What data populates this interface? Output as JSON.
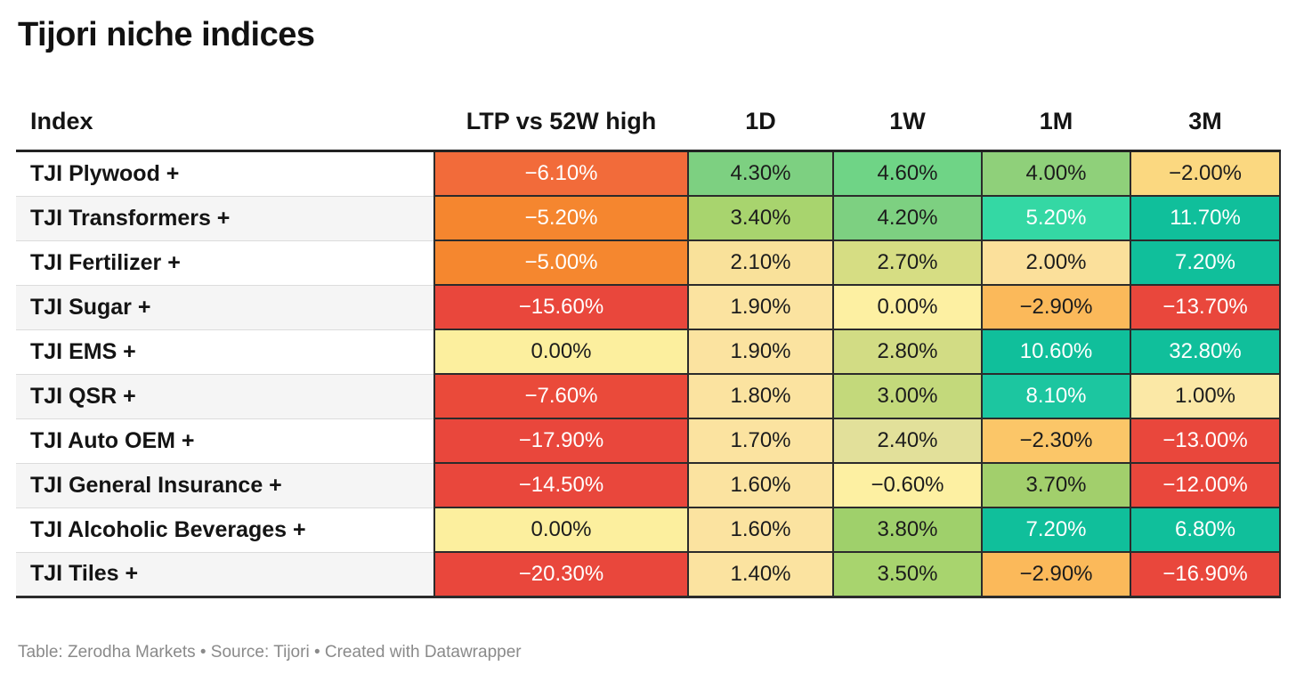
{
  "title": "Tijori niche indices",
  "footer": "Table: Zerodha Markets • Source: Tijori • Created with Datawrapper",
  "chart_data": {
    "type": "table",
    "title": "Tijori niche indices",
    "columns": [
      "Index",
      "LTP vs 52W high",
      "1D",
      "1W",
      "1M",
      "3M"
    ],
    "rows": [
      {
        "name": "TJI Plywood +",
        "values": [
          "−6.10%",
          "4.30%",
          "4.60%",
          "4.00%",
          "−2.00%"
        ],
        "colors": [
          "#f26b3a",
          "#7dd081",
          "#6fd486",
          "#8fd07a",
          "#fbd880"
        ],
        "text": [
          "light",
          "dark",
          "dark",
          "dark",
          "dark"
        ]
      },
      {
        "name": "TJI Transformers +",
        "values": [
          "−5.20%",
          "3.40%",
          "4.20%",
          "5.20%",
          "11.70%"
        ],
        "colors": [
          "#f5862f",
          "#a8d46e",
          "#7dd081",
          "#34d8a4",
          "#10bf9b"
        ],
        "text": [
          "light",
          "dark",
          "dark",
          "light",
          "light"
        ]
      },
      {
        "name": "TJI Fertilizer +",
        "values": [
          "−5.00%",
          "2.10%",
          "2.70%",
          "2.00%",
          "7.20%"
        ],
        "colors": [
          "#f5872f",
          "#f9e19a",
          "#d6dd83",
          "#fbe09b",
          "#10bf9b"
        ],
        "text": [
          "light",
          "dark",
          "dark",
          "dark",
          "light"
        ]
      },
      {
        "name": "TJI Sugar +",
        "values": [
          "−15.60%",
          "1.90%",
          "0.00%",
          "−2.90%",
          "−13.70%"
        ],
        "colors": [
          "#e9473c",
          "#fbe3a0",
          "#fdf0a2",
          "#fbb95a",
          "#e9473c"
        ],
        "text": [
          "light",
          "dark",
          "dark",
          "dark",
          "light"
        ]
      },
      {
        "name": "TJI EMS +",
        "values": [
          "0.00%",
          "1.90%",
          "2.80%",
          "10.60%",
          "32.80%"
        ],
        "colors": [
          "#fcef9e",
          "#fbe3a0",
          "#d2dc84",
          "#10bf9b",
          "#10bf9b"
        ],
        "text": [
          "dark",
          "dark",
          "dark",
          "light",
          "light"
        ]
      },
      {
        "name": "TJI QSR +",
        "values": [
          "−7.60%",
          "1.80%",
          "3.00%",
          "8.10%",
          "1.00%"
        ],
        "colors": [
          "#ea4a3a",
          "#fbe3a0",
          "#c3d97b",
          "#1cc6a0",
          "#fbe8a6"
        ],
        "text": [
          "light",
          "dark",
          "dark",
          "light",
          "dark"
        ]
      },
      {
        "name": "TJI Auto OEM +",
        "values": [
          "−17.90%",
          "1.70%",
          "2.40%",
          "−2.30%",
          "−13.00%"
        ],
        "colors": [
          "#e9473c",
          "#fbe3a0",
          "#e2e09a",
          "#fbc668",
          "#e9473c"
        ],
        "text": [
          "light",
          "dark",
          "dark",
          "dark",
          "light"
        ]
      },
      {
        "name": "TJI General Insurance +",
        "values": [
          "−14.50%",
          "1.60%",
          "−0.60%",
          "3.70%",
          "−12.00%"
        ],
        "colors": [
          "#e9473c",
          "#fbe3a0",
          "#fdf0a2",
          "#a2cf6c",
          "#e9473c"
        ],
        "text": [
          "light",
          "dark",
          "dark",
          "dark",
          "light"
        ]
      },
      {
        "name": "TJI Alcoholic Beverages +",
        "values": [
          "0.00%",
          "1.60%",
          "3.80%",
          "7.20%",
          "6.80%"
        ],
        "colors": [
          "#fcef9e",
          "#fbe3a0",
          "#9fd06b",
          "#10bf9b",
          "#10bf9b"
        ],
        "text": [
          "dark",
          "dark",
          "dark",
          "light",
          "light"
        ]
      },
      {
        "name": "TJI Tiles +",
        "values": [
          "−20.30%",
          "1.40%",
          "3.50%",
          "−2.90%",
          "−16.90%"
        ],
        "colors": [
          "#e9473c",
          "#fbe3a0",
          "#a8d46e",
          "#fbb95a",
          "#e9473c"
        ],
        "text": [
          "light",
          "dark",
          "dark",
          "dark",
          "light"
        ]
      }
    ]
  }
}
